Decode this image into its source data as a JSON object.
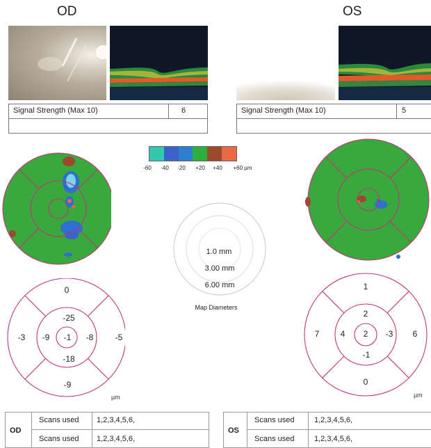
{
  "od": {
    "title": "OD",
    "signal_label": "Signal Strength (Max 10)",
    "signal_value": "6",
    "sectors": {
      "center": "-1",
      "inner_top": "-25",
      "inner_left": "-9",
      "inner_right": "-8",
      "inner_bottom": "-18",
      "outer_top": "0",
      "outer_left": "-3",
      "outer_right": "-5",
      "outer_bottom": "-9"
    },
    "unit": "µm",
    "scans": {
      "eye": "OD",
      "rows": [
        {
          "label": "Scans used",
          "value": "1,2,3,4,5,6,"
        },
        {
          "label": "Scans used",
          "value": "1,2,3,4,5,6,"
        }
      ]
    }
  },
  "os": {
    "title": "OS",
    "signal_label": "Signal Strength (Max 10)",
    "signal_value": "5",
    "sectors": {
      "center": "2",
      "inner_top": "2",
      "inner_left": "4",
      "inner_right": "-3",
      "inner_bottom": "-1",
      "outer_top": "1",
      "outer_left": "7",
      "outer_right": "6",
      "outer_bottom": "0"
    },
    "unit": "µm",
    "scans": {
      "eye": "OS",
      "rows": [
        {
          "label": "Scans used",
          "value": "1,2,3,4,5,6,"
        },
        {
          "label": "Scans used",
          "value": "1,2,3,4,5,6,"
        }
      ]
    }
  },
  "scale": {
    "labels": [
      "-60",
      "-40",
      "-20",
      "+20",
      "+40",
      "+60 µm"
    ],
    "colors": [
      "#35c8b0",
      "#3a62c8",
      "#2e7fd0",
      "#2eae3c",
      "#9c4a2e",
      "#e86a44"
    ]
  },
  "map_diameters": {
    "items": [
      "1.0 mm",
      "3.00 mm",
      "6.00 mm"
    ],
    "caption": "Map Diameters"
  },
  "colors": {
    "map_green": "#39a83d",
    "grid_line": "#c0357a",
    "table_border": "#777777"
  }
}
